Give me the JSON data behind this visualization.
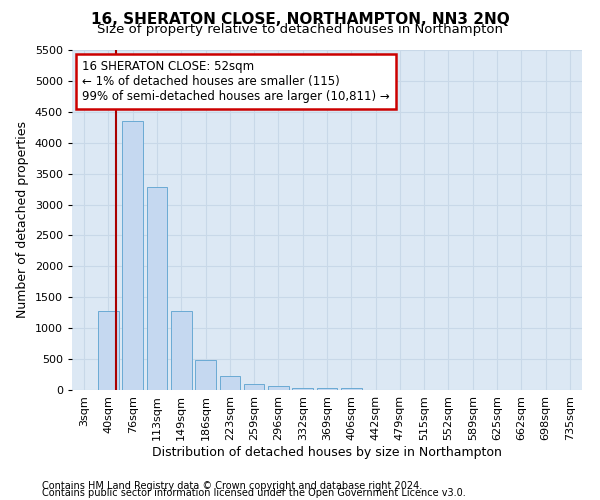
{
  "title": "16, SHERATON CLOSE, NORTHAMPTON, NN3 2NQ",
  "subtitle": "Size of property relative to detached houses in Northampton",
  "xlabel": "Distribution of detached houses by size in Northampton",
  "ylabel": "Number of detached properties",
  "footnote1": "Contains HM Land Registry data © Crown copyright and database right 2024.",
  "footnote2": "Contains public sector information licensed under the Open Government Licence v3.0.",
  "bar_labels": [
    "3sqm",
    "40sqm",
    "76sqm",
    "113sqm",
    "149sqm",
    "186sqm",
    "223sqm",
    "259sqm",
    "296sqm",
    "332sqm",
    "369sqm",
    "406sqm",
    "442sqm",
    "479sqm",
    "515sqm",
    "552sqm",
    "589sqm",
    "625sqm",
    "662sqm",
    "698sqm",
    "735sqm"
  ],
  "bar_values": [
    0,
    1270,
    4350,
    3280,
    1270,
    490,
    230,
    90,
    60,
    40,
    30,
    30,
    0,
    0,
    0,
    0,
    0,
    0,
    0,
    0,
    0
  ],
  "bar_color": "#c5d8f0",
  "bar_edgecolor": "#6aaad4",
  "vline_color": "#aa0000",
  "vline_x": 1.33,
  "ylim": [
    0,
    5500
  ],
  "yticks": [
    0,
    500,
    1000,
    1500,
    2000,
    2500,
    3000,
    3500,
    4000,
    4500,
    5000,
    5500
  ],
  "grid_color": "#c8d8e8",
  "background_color": "#dce8f4",
  "title_fontsize": 11,
  "subtitle_fontsize": 9.5,
  "axis_label_fontsize": 9,
  "tick_fontsize": 8,
  "annotation_fontsize": 8.5,
  "footnote_fontsize": 7,
  "annotation_title": "16 SHERATON CLOSE: 52sqm",
  "annotation_line2": "← 1% of detached houses are smaller (115)",
  "annotation_line3": "99% of semi-detached houses are larger (10,811) →",
  "annotation_box_edgecolor": "#cc0000",
  "annotation_box_facecolor": "#ffffff"
}
